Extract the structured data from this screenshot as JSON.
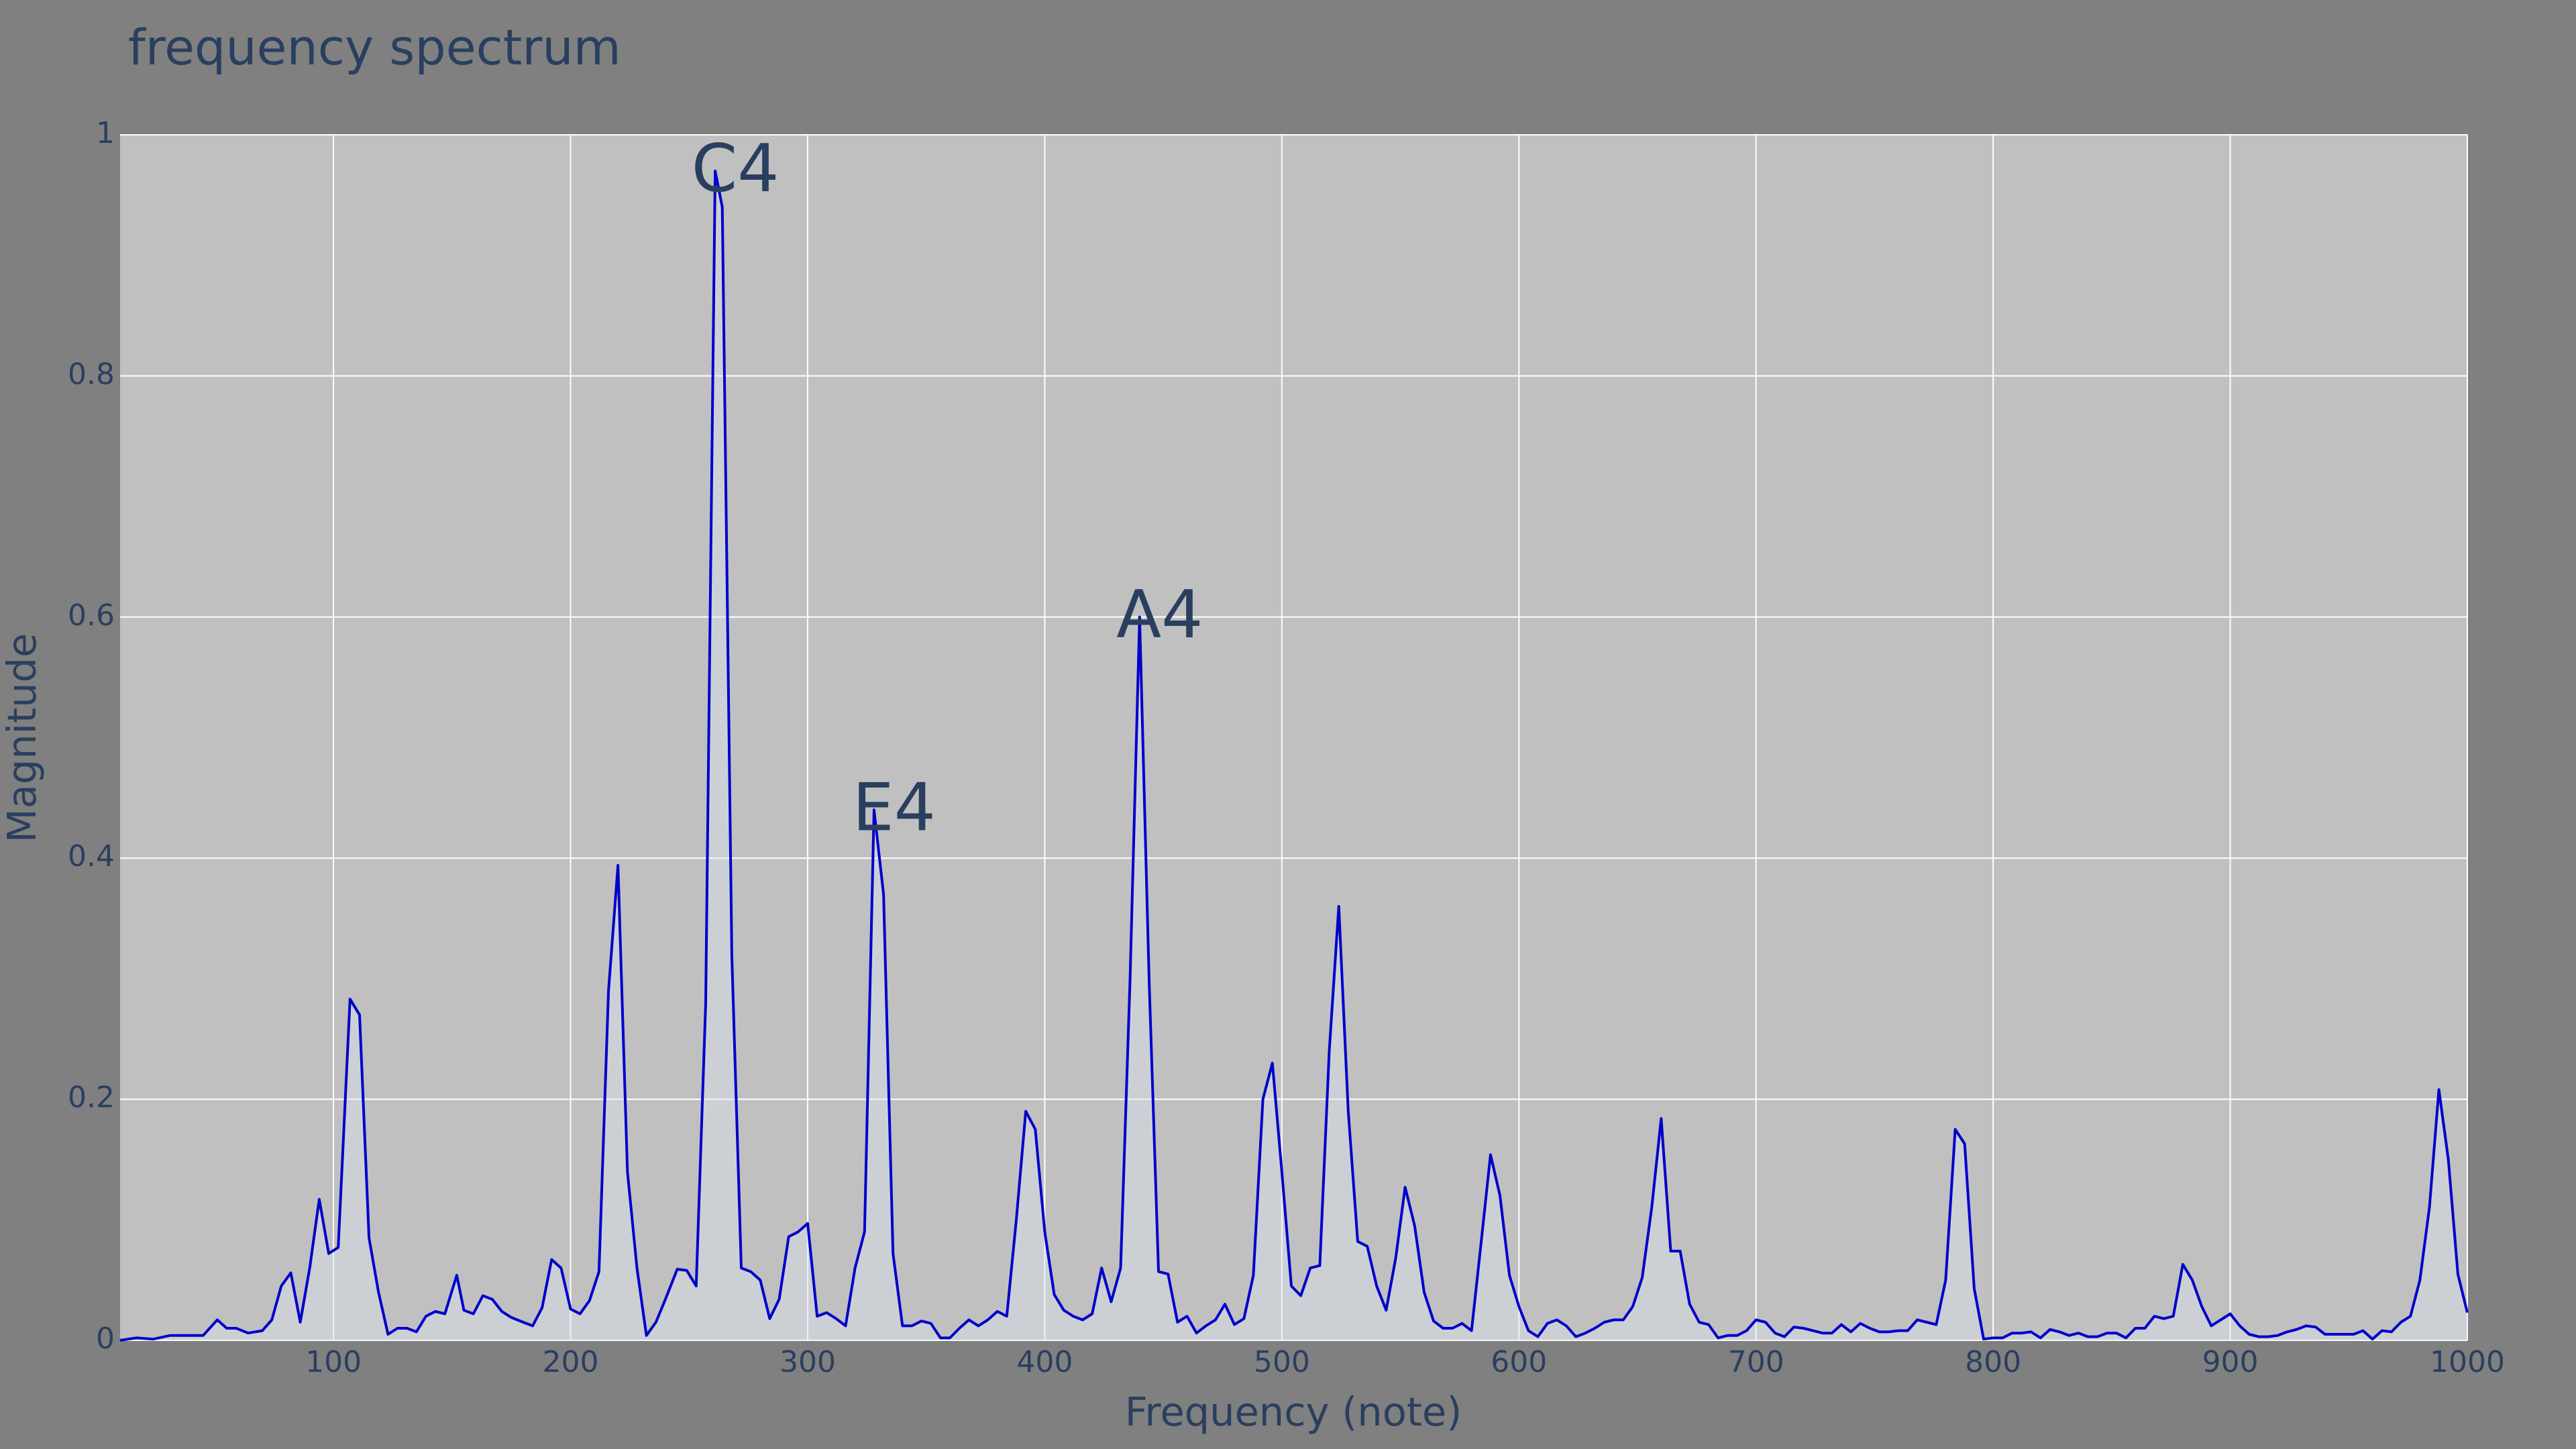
{
  "chart_data": {
    "type": "line",
    "title": "frequency spectrum",
    "x_label": "Frequency (note)",
    "y_label": "Magnitude",
    "color": "#0000cc",
    "fill": "rgba(220,228,240,0.45)",
    "grid": true,
    "xlim": [
      10,
      1000
    ],
    "ylim": [
      0,
      1
    ],
    "xticks": [
      100,
      200,
      300,
      400,
      500,
      600,
      700,
      800,
      900,
      1000
    ],
    "yticks": [
      0,
      0.2,
      0.4,
      0.6,
      0.8,
      1
    ],
    "annotations": [
      {
        "text": "C4",
        "x": 261,
        "y": 0.97
      },
      {
        "text": "E4",
        "x": 328,
        "y": 0.44
      },
      {
        "text": "A4",
        "x": 440,
        "y": 0.6
      }
    ],
    "x": [
      10,
      17,
      24,
      31,
      38,
      45,
      51,
      55,
      59,
      64,
      70,
      74,
      78,
      82,
      86,
      90,
      94,
      98,
      102,
      107,
      111,
      115,
      119,
      123,
      127,
      131,
      135,
      139,
      143,
      147,
      152,
      155,
      159,
      163,
      167,
      171,
      175,
      180,
      184,
      188,
      192,
      196,
      200,
      204,
      208,
      212,
      216,
      220,
      224,
      228,
      232,
      236,
      240,
      245,
      249,
      253,
      257,
      261,
      264,
      268,
      272,
      276,
      280,
      284,
      288,
      292,
      296,
      300,
      304,
      308,
      312,
      316,
      320,
      324,
      328,
      332,
      336,
      340,
      344,
      348,
      352,
      356,
      360,
      364,
      368,
      372,
      376,
      380,
      384,
      388,
      392,
      396,
      400,
      404,
      408,
      412,
      416,
      420,
      424,
      428,
      432,
      436,
      440,
      444,
      448,
      452,
      456,
      460,
      464,
      468,
      472,
      476,
      480,
      484,
      488,
      492,
      496,
      500,
      504,
      508,
      512,
      516,
      520,
      524,
      528,
      532,
      536,
      540,
      544,
      548,
      552,
      556,
      560,
      564,
      568,
      572,
      576,
      580,
      584,
      588,
      592,
      596,
      600,
      604,
      608,
      612,
      616,
      620,
      624,
      628,
      632,
      636,
      640,
      644,
      648,
      652,
      656,
      660,
      664,
      668,
      672,
      676,
      680,
      684,
      688,
      692,
      696,
      700,
      704,
      708,
      712,
      716,
      720,
      724,
      728,
      732,
      736,
      740,
      744,
      748,
      752,
      756,
      760,
      764,
      768,
      772,
      776,
      780,
      784,
      788,
      792,
      796,
      800,
      804,
      808,
      812,
      816,
      820,
      824,
      828,
      832,
      836,
      840,
      844,
      848,
      852,
      856,
      860,
      864,
      868,
      872,
      876,
      880,
      884,
      888,
      892,
      896,
      900,
      904,
      908,
      912,
      916,
      920,
      924,
      928,
      932,
      936,
      940,
      944,
      948,
      952,
      956,
      960,
      964,
      968,
      972,
      976,
      980,
      984,
      988,
      992,
      996,
      1000
    ],
    "series": [
      {
        "name": "Magnitude",
        "color": "#0000cc",
        "values": [
          0,
          0.002,
          0.001,
          0.004,
          0.004,
          0.004,
          0.017,
          0.01,
          0.01,
          0.006,
          0.008,
          0.017,
          0.045,
          0.056,
          0.015,
          0.06,
          0.117,
          0.072,
          0.077,
          0.283,
          0.27,
          0.085,
          0.04,
          0.005,
          0.01,
          0.01,
          0.007,
          0.02,
          0.024,
          0.022,
          0.054,
          0.025,
          0.022,
          0.037,
          0.034,
          0.024,
          0.019,
          0.015,
          0.012,
          0.027,
          0.067,
          0.06,
          0.026,
          0.022,
          0.033,
          0.057,
          0.29,
          0.394,
          0.14,
          0.06,
          0.004,
          0.015,
          0.034,
          0.059,
          0.058,
          0.045,
          0.28,
          0.97,
          0.94,
          0.32,
          0.06,
          0.057,
          0.05,
          0.018,
          0.034,
          0.086,
          0.09,
          0.097,
          0.02,
          0.023,
          0.018,
          0.012,
          0.06,
          0.09,
          0.44,
          0.37,
          0.072,
          0.012,
          0.012,
          0.016,
          0.014,
          0.002,
          0.002,
          0.01,
          0.017,
          0.012,
          0.017,
          0.024,
          0.02,
          0.1,
          0.19,
          0.175,
          0.09,
          0.038,
          0.025,
          0.02,
          0.017,
          0.022,
          0.06,
          0.032,
          0.06,
          0.3,
          0.6,
          0.3,
          0.057,
          0.055,
          0.015,
          0.02,
          0.006,
          0.012,
          0.017,
          0.03,
          0.013,
          0.018,
          0.054,
          0.2,
          0.23,
          0.14,
          0.045,
          0.037,
          0.06,
          0.062,
          0.24,
          0.36,
          0.19,
          0.082,
          0.078,
          0.045,
          0.025,
          0.068,
          0.127,
          0.095,
          0.04,
          0.016,
          0.01,
          0.01,
          0.014,
          0.008,
          0.08,
          0.154,
          0.12,
          0.054,
          0.028,
          0.008,
          0.003,
          0.014,
          0.017,
          0.012,
          0.003,
          0.006,
          0.01,
          0.015,
          0.017,
          0.017,
          0.028,
          0.052,
          0.11,
          0.184,
          0.074,
          0.074,
          0.03,
          0.015,
          0.013,
          0.002,
          0.004,
          0.004,
          0.008,
          0.017,
          0.015,
          0.006,
          0.003,
          0.011,
          0.01,
          0.008,
          0.006,
          0.006,
          0.013,
          0.007,
          0.014,
          0.01,
          0.007,
          0.007,
          0.008,
          0.008,
          0.017,
          0.015,
          0.013,
          0.05,
          0.175,
          0.163,
          0.043,
          0.001,
          0.002,
          0.002,
          0.006,
          0.006,
          0.007,
          0.002,
          0.009,
          0.007,
          0.004,
          0.006,
          0.003,
          0.003,
          0.006,
          0.006,
          0.002,
          0.01,
          0.01,
          0.02,
          0.018,
          0.02,
          0.063,
          0.05,
          0.028,
          0.012,
          0.017,
          0.022,
          0.012,
          0.005,
          0.003,
          0.003,
          0.004,
          0.007,
          0.009,
          0.012,
          0.011,
          0.005,
          0.005,
          0.005,
          0.005,
          0.008,
          0.001,
          0.008,
          0.007,
          0.015,
          0.02,
          0.05,
          0.11,
          0.208,
          0.15,
          0.055,
          0.023
        ]
      }
    ]
  }
}
